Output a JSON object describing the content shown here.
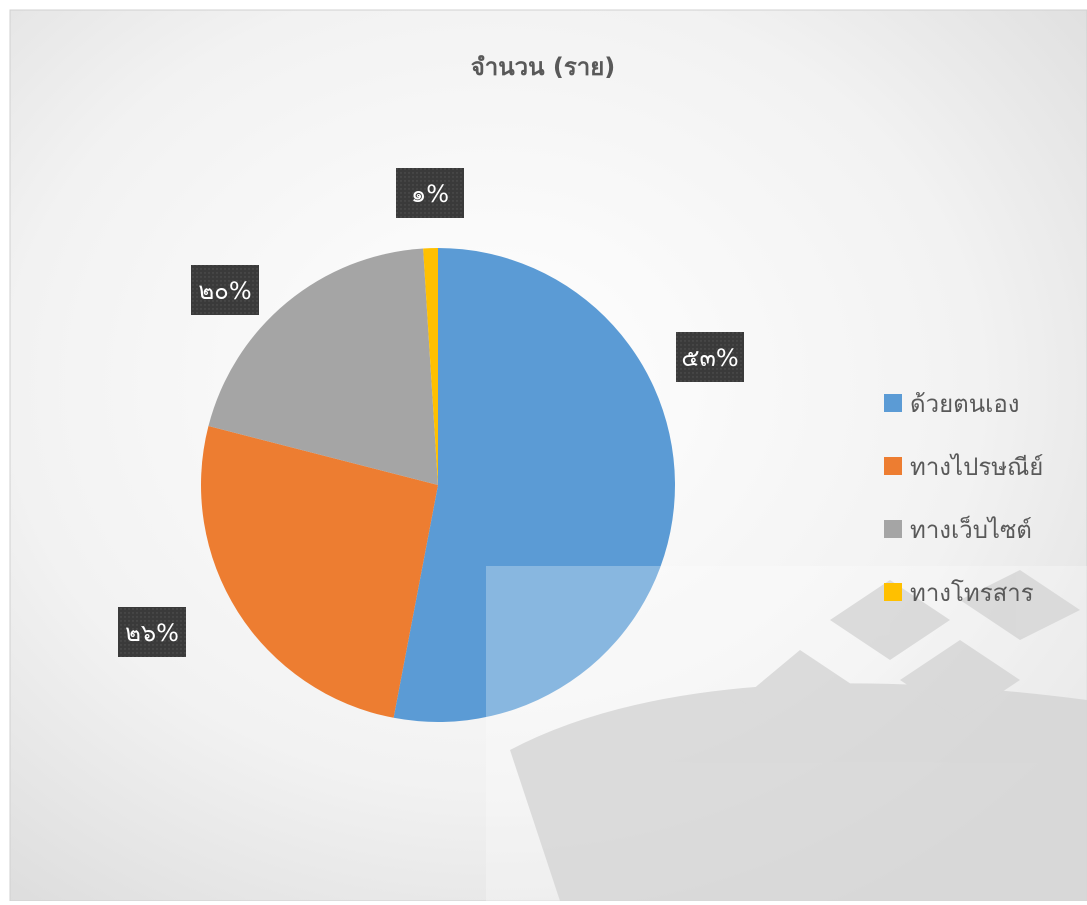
{
  "chart_data": {
    "type": "pie",
    "title": "จำนวน (ราย)",
    "categories": [
      "ด้วยตนเอง",
      "ทางไปรษณีย์",
      "ทางเว็บไซต์",
      "ทางโทรสาร"
    ],
    "values": [
      53,
      26,
      20,
      1
    ],
    "value_labels": [
      "๕๓%",
      "๒๖%",
      "๒๐%",
      "๑%"
    ],
    "colors": [
      "#5b9bd5",
      "#ed7d31",
      "#a5a5a5",
      "#ffc000"
    ],
    "legend": "right"
  }
}
